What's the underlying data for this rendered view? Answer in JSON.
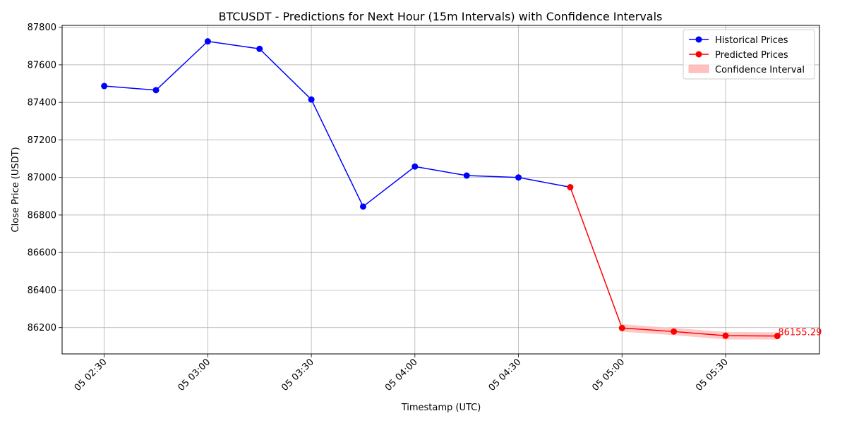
{
  "chart_data": {
    "type": "line",
    "title": "BTCUSDT - Predictions for Next Hour (15m Intervals) with Confidence Intervals",
    "xlabel": "Timestamp (UTC)",
    "ylabel": "Close Price (USDT)",
    "x_unit": "15m",
    "x_ticks": [
      "05 02:30",
      "05 03:00",
      "05 03:30",
      "05 04:00",
      "05 04:30",
      "05 05:00",
      "05 05:30"
    ],
    "y_ticks": [
      86200,
      86400,
      86600,
      86800,
      87000,
      87200,
      87400,
      87600,
      87800
    ],
    "ylim": [
      86060,
      87810
    ],
    "grid": true,
    "legend_position": "top-right",
    "series": [
      {
        "name": "Historical Prices",
        "color": "#0000ff",
        "x": [
          "05 02:30",
          "05 02:45",
          "05 03:00",
          "05 03:15",
          "05 03:30",
          "05 03:45",
          "05 04:00",
          "05 04:15",
          "05 04:30"
        ],
        "values": [
          87487,
          87465,
          87725,
          87685,
          87415,
          86845,
          87058,
          87010,
          87000
        ]
      },
      {
        "name": "Predicted Prices",
        "color": "#ff0000",
        "x": [
          "05 04:45",
          "05 05:00",
          "05 05:15",
          "05 05:30",
          "05 05:45"
        ],
        "values": [
          86948,
          86198,
          86179,
          86157,
          86155.29
        ]
      }
    ],
    "bridge": {
      "color": "#0000ff",
      "x": [
        "05 04:30",
        "05 04:45"
      ],
      "values": [
        87000,
        86948
      ]
    },
    "confidence_interval": {
      "name": "Confidence Interval",
      "color": "#ffc0c0",
      "x": [
        "05 05:00",
        "05 05:15",
        "05 05:30",
        "05 05:45"
      ],
      "lower": [
        86178,
        86160,
        86137,
        86137
      ],
      "upper": [
        86218,
        86198,
        86177,
        86175
      ]
    },
    "annotation": {
      "text": "86155.29",
      "x": "05 05:45",
      "value": 86155.29,
      "color": "#ff0000"
    }
  }
}
